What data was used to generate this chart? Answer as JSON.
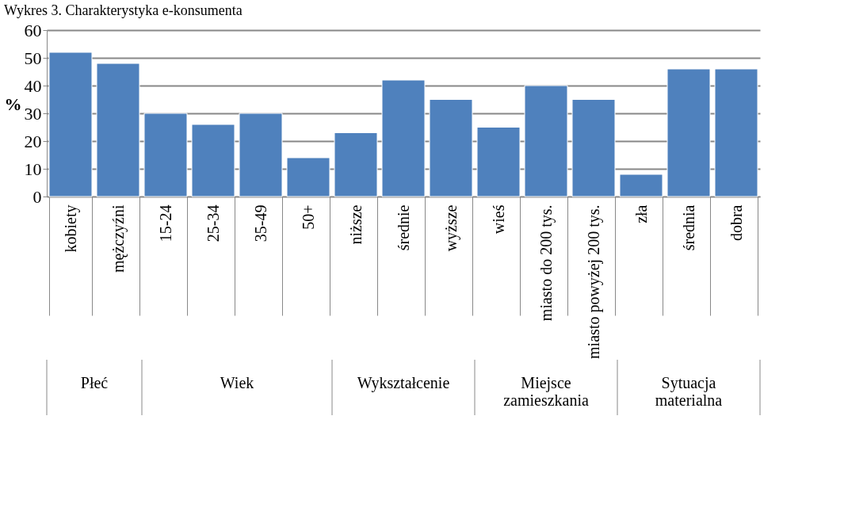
{
  "chart_data": {
    "type": "bar",
    "title": "Wykres 3. Charakterystyka e-konsumenta",
    "ylabel": "%",
    "categories": [
      "kobiety",
      "mężczyźni",
      "15-24",
      "25-34",
      "35-49",
      "50+",
      "niższe",
      "średnie",
      "wyższe",
      "wieś",
      "miasto do 200 tys.",
      "miasto powyżej 200 tys.",
      "zła",
      "średnia",
      "dobra"
    ],
    "values": [
      52,
      48,
      30,
      26,
      30,
      14,
      23,
      42,
      35,
      25,
      40,
      35,
      8,
      46,
      46
    ],
    "color": "#4f81bd",
    "ylim": [
      0,
      60
    ],
    "yticks": [
      0,
      10,
      20,
      30,
      40,
      50,
      60
    ],
    "grid": "y",
    "annotations": [
      "Płeć",
      "Wiek",
      "Wykształcenie",
      "Miejsce zamieszkania",
      "Sytuacja materialna"
    ]
  }
}
